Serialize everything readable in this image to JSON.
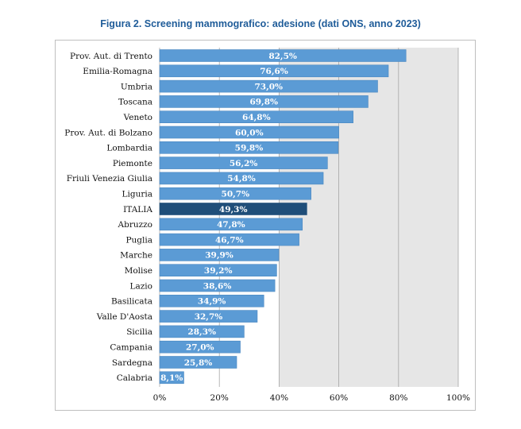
{
  "chart_data": {
    "type": "bar",
    "orientation": "horizontal",
    "title": "Figura 2. Screening mammografico: adesione (dati ONS, anno 2023)",
    "categories": [
      "Prov. Aut. di Trento",
      "Emilia-Romagna",
      "Umbria",
      "Toscana",
      "Veneto",
      "Prov. Aut. di Bolzano",
      "Lombardia",
      "Piemonte",
      "Friuli Venezia Giulia",
      "Liguria",
      "ITALIA",
      "Abruzzo",
      "Puglia",
      "Marche",
      "Molise",
      "Lazio",
      "Basilicata",
      "Valle D'Aosta",
      "Sicilia",
      "Campania",
      "Sardegna",
      "Calabria"
    ],
    "values": [
      82.5,
      76.6,
      73.0,
      69.8,
      64.8,
      60.0,
      59.8,
      56.2,
      54.8,
      50.7,
      49.3,
      47.8,
      46.7,
      39.9,
      39.2,
      38.6,
      34.9,
      32.7,
      28.3,
      27.0,
      25.8,
      8.1
    ],
    "value_labels": [
      "82,5%",
      "76,6%",
      "73,0%",
      "69,8%",
      "64,8%",
      "60,0%",
      "59,8%",
      "56,2%",
      "54,8%",
      "50,7%",
      "49,3%",
      "47,8%",
      "46,7%",
      "39,9%",
      "39,2%",
      "38,6%",
      "34,9%",
      "32,7%",
      "28,3%",
      "27,0%",
      "25,8%",
      "8,1%"
    ],
    "highlight_category": "ITALIA",
    "xlim": [
      0,
      100
    ],
    "xticks": [
      0,
      20,
      40,
      60,
      80,
      100
    ],
    "xtick_labels": [
      "0%",
      "20%",
      "40%",
      "60%",
      "80%",
      "100%"
    ],
    "grid": true,
    "colors": {
      "bar": "#5b9bd5",
      "highlight_bar": "#1f4e79",
      "bar_outline": "#4a87c0",
      "plot_band": "#e6e6e6",
      "grid": "#a6a6a6",
      "title": "#1f5c99"
    }
  }
}
